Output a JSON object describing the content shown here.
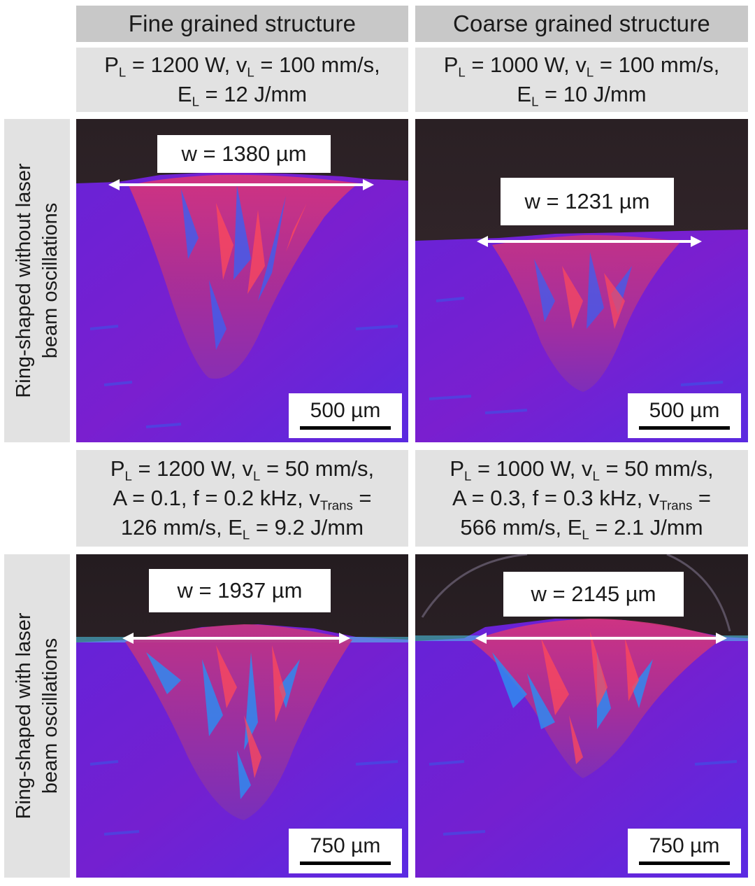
{
  "columns": [
    "Fine grained structure",
    "Coarse grained structure"
  ],
  "rows": [
    [
      "Ring-shaped without laser",
      "beam oscillations"
    ],
    [
      "Ring-shaped with laser",
      "beam oscillations"
    ]
  ],
  "params": {
    "r1c1": {
      "l1": {
        "a": "P",
        "as": "L",
        "b": " = 1200 W, v",
        "bs": "L",
        "c": " = 100 mm/s,"
      },
      "l2": {
        "a": "E",
        "as": "L",
        "b": " = 12 J/mm"
      }
    },
    "r1c2": {
      "l1": {
        "a": "P",
        "as": "L",
        "b": " = 1000 W, v",
        "bs": "L",
        "c": " = 100 mm/s,"
      },
      "l2": {
        "a": "E",
        "as": "L",
        "b": " = 10 J/mm"
      }
    },
    "r2c1": {
      "l1": {
        "a": "P",
        "as": "L",
        "b": " = 1200 W, v",
        "bs": "L",
        "c": " = 50 mm/s,"
      },
      "l2": {
        "a": "A = 0.1, f = 0.2 kHz, v",
        "as": "Trans",
        "b": " ="
      },
      "l3": {
        "a": "126 mm/s, E",
        "as": "L",
        "b": " = 9.2 J/mm"
      }
    },
    "r2c2": {
      "l1": {
        "a": "P",
        "as": "L",
        "b": " = 1000 W, v",
        "bs": "L",
        "c": " = 50 mm/s,"
      },
      "l2": {
        "a": "A = 0.3, f = 0.3 kHz, v",
        "as": "Trans",
        "b": " ="
      },
      "l3": {
        "a": "566 mm/s, E",
        "as": "L",
        "b": " = 2.1 J/mm"
      }
    }
  },
  "panels": {
    "p11": {
      "width_label": "w = 1380 µm",
      "scale_label": "500 µm"
    },
    "p12": {
      "width_label": "w = 1231 µm",
      "scale_label": "500 µm"
    },
    "p21": {
      "width_label": "w = 1937 µm",
      "scale_label": "750 µm"
    },
    "p22": {
      "width_label": "w = 2145 µm",
      "scale_label": "750 µm"
    }
  },
  "colors": {
    "header_bg": "#c8c8c8",
    "param_bg": "#e2e2e2",
    "matrix": "#6a1fd0",
    "background_dark": "#2e2226",
    "grain_red": "#e8356a",
    "grain_blue": "#2f6ef0"
  }
}
